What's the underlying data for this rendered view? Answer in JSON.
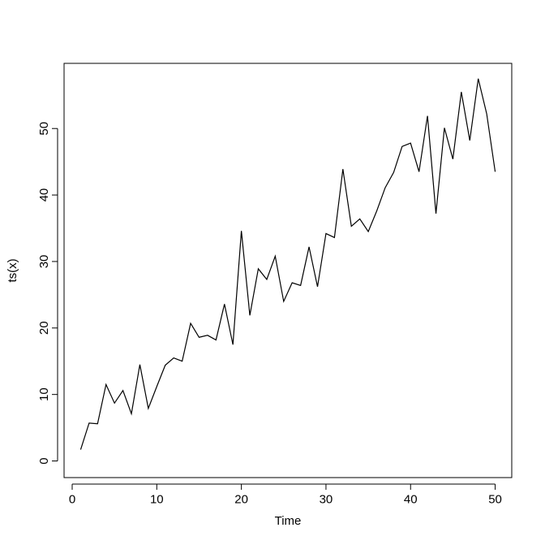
{
  "chart_data": {
    "type": "line",
    "xlabel": "Time",
    "ylabel": "ts(x)",
    "x": [
      1,
      2,
      3,
      4,
      5,
      6,
      7,
      8,
      9,
      10,
      11,
      12,
      13,
      14,
      15,
      16,
      17,
      18,
      19,
      20,
      21,
      22,
      23,
      24,
      25,
      26,
      27,
      28,
      29,
      30,
      31,
      32,
      33,
      34,
      35,
      36,
      37,
      38,
      39,
      40,
      41,
      42,
      43,
      44,
      45,
      46,
      47,
      48,
      49,
      50
    ],
    "series": [
      {
        "color": "#000000",
        "values": [
          1.7,
          5.7,
          5.6,
          11.5,
          8.7,
          10.6,
          7.1,
          14.5,
          7.9,
          11.2,
          14.4,
          15.5,
          15.0,
          20.7,
          18.6,
          18.9,
          18.2,
          23.6,
          17.5,
          34.6,
          21.9,
          28.9,
          27.3,
          30.8,
          24.0,
          26.8,
          26.4,
          32.2,
          26.2,
          34.2,
          33.6,
          43.9,
          35.3,
          36.4,
          34.5,
          37.6,
          41.1,
          43.4,
          47.3,
          47.8,
          43.5,
          51.9,
          37.2,
          50.1,
          45.4,
          55.5,
          48.2,
          57.5,
          52.2,
          43.5
        ]
      }
    ],
    "xlim": [
      -0.96,
      51.96
    ],
    "ylim": [
      -2.5,
      59.8
    ],
    "xticks": [
      0,
      10,
      20,
      30,
      40,
      50
    ],
    "yticks": [
      0,
      10,
      20,
      30,
      40,
      50
    ]
  }
}
